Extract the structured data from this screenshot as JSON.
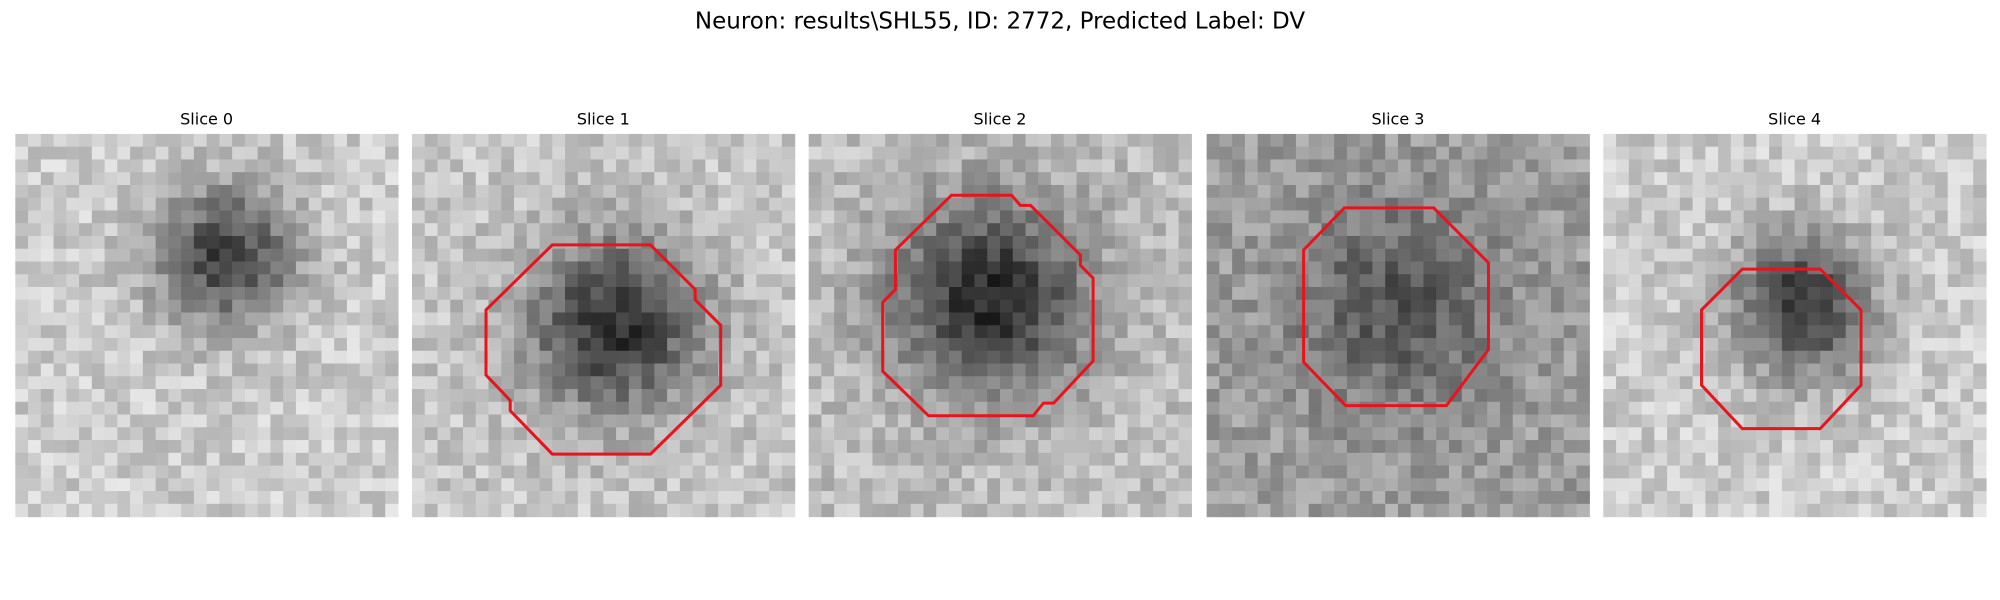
{
  "title": "Neuron: results\\SHL55, ID: 2772, Predicted Label: DV",
  "panels": [
    {
      "title": "Slice 0"
    },
    {
      "title": "Slice 1"
    },
    {
      "title": "Slice 2"
    },
    {
      "title": "Slice 3"
    },
    {
      "title": "Slice 4"
    }
  ]
}
